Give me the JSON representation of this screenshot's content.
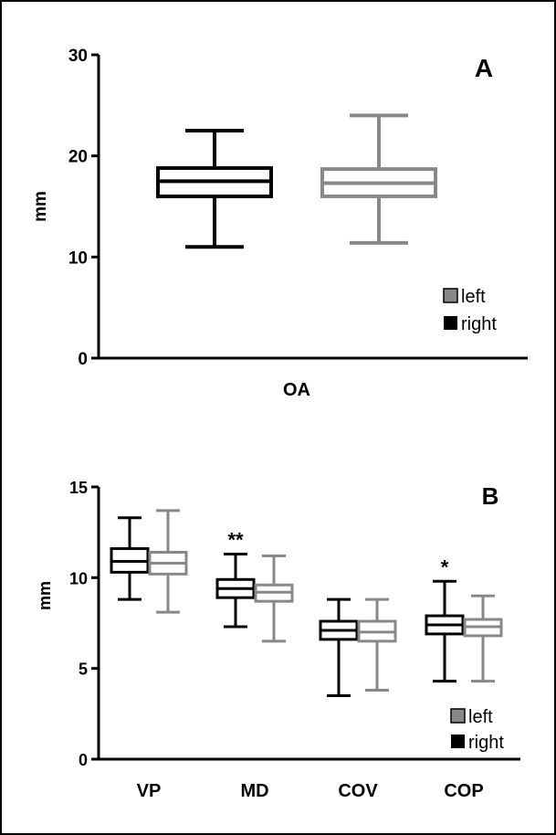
{
  "colors": {
    "right": "#000000",
    "left": "#888888",
    "frame": "#000000"
  },
  "chart_data": [
    {
      "panel": "A",
      "type": "boxplot",
      "ylabel": "mm",
      "ylim": [
        0,
        30
      ],
      "yticks": [
        "0",
        "10",
        "20",
        "30"
      ],
      "grid": false,
      "legend_position": "bottom-right",
      "legend": [
        {
          "name": "left",
          "color": "#888888"
        },
        {
          "name": "right",
          "color": "#000000"
        }
      ],
      "categories": [
        "OA"
      ],
      "groups": [
        {
          "category": "OA",
          "boxes": [
            {
              "series": "right",
              "color": "#000000",
              "min": 11.0,
              "q1": 16.0,
              "median": 17.5,
              "q3": 18.8,
              "max": 22.5,
              "annotation": ""
            },
            {
              "series": "left",
              "color": "#888888",
              "min": 11.4,
              "q1": 16.0,
              "median": 17.3,
              "q3": 18.7,
              "max": 24.0,
              "annotation": ""
            }
          ]
        }
      ]
    },
    {
      "panel": "B",
      "type": "boxplot",
      "ylabel": "mm",
      "ylim": [
        0,
        15
      ],
      "yticks": [
        "0",
        "5",
        "10",
        "15"
      ],
      "grid": false,
      "legend_position": "bottom-right",
      "legend": [
        {
          "name": "left",
          "color": "#888888"
        },
        {
          "name": "right",
          "color": "#000000"
        }
      ],
      "categories": [
        "VP",
        "MD",
        "COV",
        "COP"
      ],
      "groups": [
        {
          "category": "VP",
          "boxes": [
            {
              "series": "right",
              "color": "#000000",
              "min": 8.8,
              "q1": 10.3,
              "median": 10.9,
              "q3": 11.6,
              "max": 13.3,
              "annotation": ""
            },
            {
              "series": "left",
              "color": "#888888",
              "min": 8.1,
              "q1": 10.2,
              "median": 10.8,
              "q3": 11.4,
              "max": 13.7,
              "annotation": ""
            }
          ]
        },
        {
          "category": "MD",
          "boxes": [
            {
              "series": "right",
              "color": "#000000",
              "min": 7.3,
              "q1": 8.9,
              "median": 9.4,
              "q3": 9.9,
              "max": 11.3,
              "annotation": "**"
            },
            {
              "series": "left",
              "color": "#888888",
              "min": 6.5,
              "q1": 8.7,
              "median": 9.2,
              "q3": 9.6,
              "max": 11.2,
              "annotation": ""
            }
          ]
        },
        {
          "category": "COV",
          "boxes": [
            {
              "series": "right",
              "color": "#000000",
              "min": 3.5,
              "q1": 6.6,
              "median": 7.1,
              "q3": 7.6,
              "max": 8.8,
              "annotation": ""
            },
            {
              "series": "left",
              "color": "#888888",
              "min": 3.8,
              "q1": 6.5,
              "median": 7.0,
              "q3": 7.6,
              "max": 8.8,
              "annotation": ""
            }
          ]
        },
        {
          "category": "COP",
          "boxes": [
            {
              "series": "right",
              "color": "#000000",
              "min": 4.3,
              "q1": 6.9,
              "median": 7.4,
              "q3": 7.9,
              "max": 9.8,
              "annotation": "*"
            },
            {
              "series": "left",
              "color": "#888888",
              "min": 4.3,
              "q1": 6.8,
              "median": 7.3,
              "q3": 7.7,
              "max": 9.0,
              "annotation": ""
            }
          ]
        }
      ]
    }
  ]
}
